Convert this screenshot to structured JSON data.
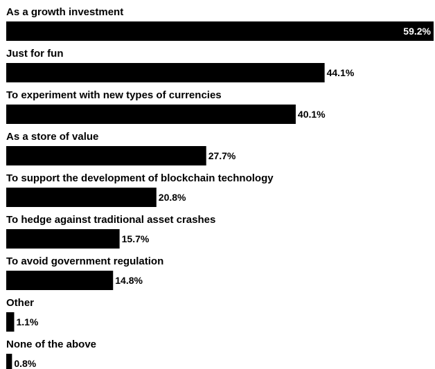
{
  "chart_data": {
    "type": "bar",
    "orientation": "horizontal",
    "title": "",
    "xlabel": "",
    "ylabel": "",
    "unit": "%",
    "xlim": [
      0,
      59.2
    ],
    "grid": false,
    "legend": "none",
    "categories": [
      "As a growth investment",
      "Just for fun",
      "To experiment with new types of currencies",
      "As a store of value",
      "To support the development of blockchain technology",
      "To hedge against traditional asset crashes",
      "To avoid government regulation",
      "Other",
      "None of the above"
    ],
    "values": [
      59.2,
      44.1,
      40.1,
      27.7,
      20.8,
      15.7,
      14.8,
      1.1,
      0.8
    ],
    "value_labels": [
      "59.2%",
      "44.1%",
      "40.1%",
      "27.7%",
      "20.8%",
      "15.7%",
      "14.8%",
      "1.1%",
      "0.8%"
    ]
  },
  "colors": {
    "bar": "#000000",
    "text": "#000000",
    "inside_label": "#ffffff",
    "background": "#ffffff"
  }
}
